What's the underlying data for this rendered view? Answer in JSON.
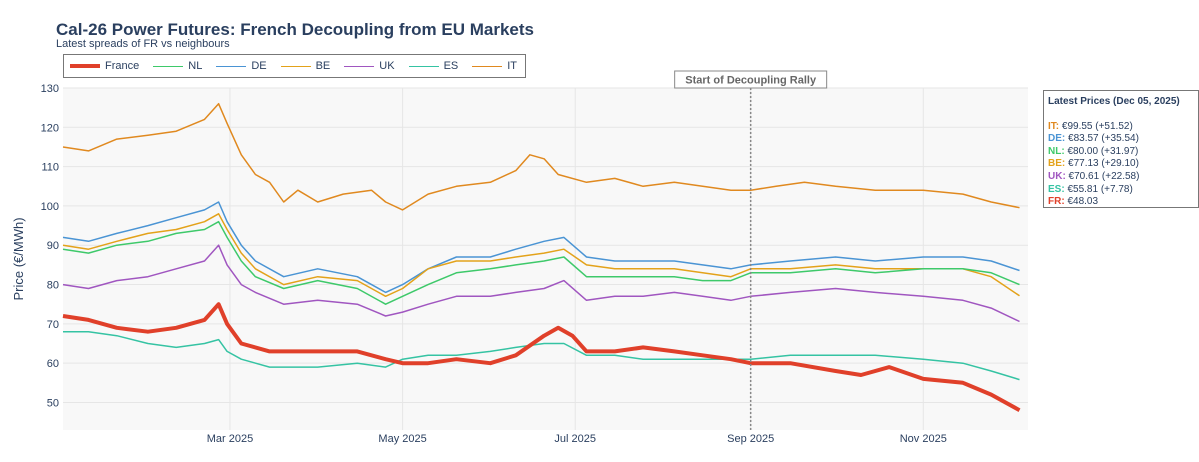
{
  "title": "Cal-26 Power Futures: French Decoupling from EU Markets",
  "subtitle": "Latest spreads of FR vs neighbours",
  "legend": [
    {
      "name": "France",
      "color": "#e0402a",
      "width": 4
    },
    {
      "name": "NL",
      "color": "#3ec96a",
      "width": 1.5
    },
    {
      "name": "DE",
      "color": "#4a94d4",
      "width": 1.5
    },
    {
      "name": "BE",
      "color": "#e3a21a",
      "width": 1.5
    },
    {
      "name": "UK",
      "color": "#a056c0",
      "width": 1.5
    },
    {
      "name": "ES",
      "color": "#35c3a3",
      "width": 1.5
    },
    {
      "name": "IT",
      "color": "#e0891f",
      "width": 1.5
    }
  ],
  "annotation": {
    "text": "Start of Decoupling Rally",
    "date": "2025-09-01"
  },
  "latest_prices": {
    "title": "Latest Prices (Dec 05, 2025)",
    "items": [
      {
        "label": "IT:",
        "text": "€99.55 (+51.52)",
        "color": "#e0891f"
      },
      {
        "label": "DE:",
        "text": "€83.57 (+35.54)",
        "color": "#4a94d4"
      },
      {
        "label": "NL:",
        "text": "€80.00 (+31.97)",
        "color": "#3ec96a"
      },
      {
        "label": "BE:",
        "text": "€77.13 (+29.10)",
        "color": "#e3a21a"
      },
      {
        "label": "UK:",
        "text": "€70.61 (+22.58)",
        "color": "#a056c0"
      },
      {
        "label": "ES:",
        "text": "€55.81 (+7.78)",
        "color": "#35c3a3"
      },
      {
        "label": "FR:",
        "text": "€48.03",
        "color": "#e0402a"
      }
    ]
  },
  "chart_data": {
    "type": "line",
    "ylabel": "Price (€/MWh)",
    "xlabel": "",
    "ylim": [
      43,
      130
    ],
    "xlim": [
      "2025-01-01",
      "2025-12-08"
    ],
    "yticks": [
      50,
      60,
      70,
      80,
      90,
      100,
      110,
      120,
      130
    ],
    "xticks": [
      {
        "date": "2025-03-01",
        "label": "Mar 2025"
      },
      {
        "date": "2025-05-01",
        "label": "May 2025"
      },
      {
        "date": "2025-07-01",
        "label": "Jul 2025"
      },
      {
        "date": "2025-09-01",
        "label": "Sep 2025"
      },
      {
        "date": "2025-11-01",
        "label": "Nov 2025"
      }
    ],
    "grid": true,
    "series": [
      {
        "name": "IT",
        "color": "#e0891f",
        "width": 1.5,
        "points": [
          [
            "2025-01-01",
            115
          ],
          [
            "2025-01-10",
            114
          ],
          [
            "2025-01-20",
            117
          ],
          [
            "2025-01-31",
            118
          ],
          [
            "2025-02-10",
            119
          ],
          [
            "2025-02-20",
            122
          ],
          [
            "2025-02-25",
            126
          ],
          [
            "2025-02-28",
            121
          ],
          [
            "2025-03-05",
            113
          ],
          [
            "2025-03-10",
            108
          ],
          [
            "2025-03-15",
            106
          ],
          [
            "2025-03-20",
            101
          ],
          [
            "2025-03-25",
            104
          ],
          [
            "2025-04-01",
            101
          ],
          [
            "2025-04-10",
            103
          ],
          [
            "2025-04-20",
            104
          ],
          [
            "2025-04-25",
            101
          ],
          [
            "2025-05-01",
            99
          ],
          [
            "2025-05-10",
            103
          ],
          [
            "2025-05-20",
            105
          ],
          [
            "2025-06-01",
            106
          ],
          [
            "2025-06-10",
            109
          ],
          [
            "2025-06-15",
            113
          ],
          [
            "2025-06-20",
            112
          ],
          [
            "2025-06-25",
            108
          ],
          [
            "2025-07-05",
            106
          ],
          [
            "2025-07-15",
            107
          ],
          [
            "2025-07-25",
            105
          ],
          [
            "2025-08-05",
            106
          ],
          [
            "2025-08-15",
            105
          ],
          [
            "2025-08-25",
            104
          ],
          [
            "2025-09-01",
            104
          ],
          [
            "2025-09-10",
            105
          ],
          [
            "2025-09-20",
            106
          ],
          [
            "2025-10-01",
            105
          ],
          [
            "2025-10-15",
            104
          ],
          [
            "2025-11-01",
            104
          ],
          [
            "2025-11-15",
            103
          ],
          [
            "2025-11-25",
            101
          ],
          [
            "2025-12-05",
            99.55
          ]
        ]
      },
      {
        "name": "DE",
        "color": "#4a94d4",
        "width": 1.5,
        "points": [
          [
            "2025-01-01",
            92
          ],
          [
            "2025-01-10",
            91
          ],
          [
            "2025-01-20",
            93
          ],
          [
            "2025-01-31",
            95
          ],
          [
            "2025-02-10",
            97
          ],
          [
            "2025-02-20",
            99
          ],
          [
            "2025-02-25",
            101
          ],
          [
            "2025-02-28",
            96
          ],
          [
            "2025-03-05",
            90
          ],
          [
            "2025-03-10",
            86
          ],
          [
            "2025-03-20",
            82
          ],
          [
            "2025-04-01",
            84
          ],
          [
            "2025-04-15",
            82
          ],
          [
            "2025-04-25",
            78
          ],
          [
            "2025-05-01",
            80
          ],
          [
            "2025-05-10",
            84
          ],
          [
            "2025-05-20",
            87
          ],
          [
            "2025-06-01",
            87
          ],
          [
            "2025-06-10",
            89
          ],
          [
            "2025-06-20",
            91
          ],
          [
            "2025-06-27",
            92
          ],
          [
            "2025-07-05",
            87
          ],
          [
            "2025-07-15",
            86
          ],
          [
            "2025-07-25",
            86
          ],
          [
            "2025-08-05",
            86
          ],
          [
            "2025-08-15",
            85
          ],
          [
            "2025-08-25",
            84
          ],
          [
            "2025-09-01",
            85
          ],
          [
            "2025-09-15",
            86
          ],
          [
            "2025-10-01",
            87
          ],
          [
            "2025-10-15",
            86
          ],
          [
            "2025-11-01",
            87
          ],
          [
            "2025-11-15",
            87
          ],
          [
            "2025-11-25",
            86
          ],
          [
            "2025-12-05",
            83.57
          ]
        ]
      },
      {
        "name": "BE",
        "color": "#e3a21a",
        "width": 1.5,
        "points": [
          [
            "2025-01-01",
            90
          ],
          [
            "2025-01-10",
            89
          ],
          [
            "2025-01-20",
            91
          ],
          [
            "2025-01-31",
            93
          ],
          [
            "2025-02-10",
            94
          ],
          [
            "2025-02-20",
            96
          ],
          [
            "2025-02-25",
            98
          ],
          [
            "2025-02-28",
            94
          ],
          [
            "2025-03-05",
            88
          ],
          [
            "2025-03-10",
            84
          ],
          [
            "2025-03-20",
            80
          ],
          [
            "2025-04-01",
            82
          ],
          [
            "2025-04-15",
            81
          ],
          [
            "2025-04-25",
            77
          ],
          [
            "2025-05-01",
            79
          ],
          [
            "2025-05-10",
            84
          ],
          [
            "2025-05-20",
            86
          ],
          [
            "2025-06-01",
            86
          ],
          [
            "2025-06-10",
            87
          ],
          [
            "2025-06-20",
            88
          ],
          [
            "2025-06-27",
            89
          ],
          [
            "2025-07-05",
            85
          ],
          [
            "2025-07-15",
            84
          ],
          [
            "2025-07-25",
            84
          ],
          [
            "2025-08-05",
            84
          ],
          [
            "2025-08-15",
            83
          ],
          [
            "2025-08-25",
            82
          ],
          [
            "2025-09-01",
            84
          ],
          [
            "2025-09-15",
            84
          ],
          [
            "2025-10-01",
            85
          ],
          [
            "2025-10-15",
            84
          ],
          [
            "2025-11-01",
            84
          ],
          [
            "2025-11-15",
            84
          ],
          [
            "2025-11-25",
            82
          ],
          [
            "2025-12-05",
            77.13
          ]
        ]
      },
      {
        "name": "NL",
        "color": "#3ec96a",
        "width": 1.5,
        "points": [
          [
            "2025-01-01",
            89
          ],
          [
            "2025-01-10",
            88
          ],
          [
            "2025-01-20",
            90
          ],
          [
            "2025-01-31",
            91
          ],
          [
            "2025-02-10",
            93
          ],
          [
            "2025-02-20",
            94
          ],
          [
            "2025-02-25",
            96
          ],
          [
            "2025-02-28",
            92
          ],
          [
            "2025-03-05",
            86
          ],
          [
            "2025-03-10",
            82
          ],
          [
            "2025-03-20",
            79
          ],
          [
            "2025-04-01",
            81
          ],
          [
            "2025-04-15",
            79
          ],
          [
            "2025-04-25",
            75
          ],
          [
            "2025-05-01",
            77
          ],
          [
            "2025-05-10",
            80
          ],
          [
            "2025-05-20",
            83
          ],
          [
            "2025-06-01",
            84
          ],
          [
            "2025-06-10",
            85
          ],
          [
            "2025-06-20",
            86
          ],
          [
            "2025-06-27",
            87
          ],
          [
            "2025-07-05",
            82
          ],
          [
            "2025-07-15",
            82
          ],
          [
            "2025-07-25",
            82
          ],
          [
            "2025-08-05",
            82
          ],
          [
            "2025-08-15",
            81
          ],
          [
            "2025-08-25",
            81
          ],
          [
            "2025-09-01",
            83
          ],
          [
            "2025-09-15",
            83
          ],
          [
            "2025-10-01",
            84
          ],
          [
            "2025-10-15",
            83
          ],
          [
            "2025-11-01",
            84
          ],
          [
            "2025-11-15",
            84
          ],
          [
            "2025-11-25",
            83
          ],
          [
            "2025-12-05",
            80.0
          ]
        ]
      },
      {
        "name": "UK",
        "color": "#a056c0",
        "width": 1.5,
        "points": [
          [
            "2025-01-01",
            80
          ],
          [
            "2025-01-10",
            79
          ],
          [
            "2025-01-20",
            81
          ],
          [
            "2025-01-31",
            82
          ],
          [
            "2025-02-10",
            84
          ],
          [
            "2025-02-20",
            86
          ],
          [
            "2025-02-25",
            90
          ],
          [
            "2025-02-28",
            85
          ],
          [
            "2025-03-05",
            80
          ],
          [
            "2025-03-10",
            78
          ],
          [
            "2025-03-20",
            75
          ],
          [
            "2025-04-01",
            76
          ],
          [
            "2025-04-15",
            75
          ],
          [
            "2025-04-25",
            72
          ],
          [
            "2025-05-01",
            73
          ],
          [
            "2025-05-10",
            75
          ],
          [
            "2025-05-20",
            77
          ],
          [
            "2025-06-01",
            77
          ],
          [
            "2025-06-10",
            78
          ],
          [
            "2025-06-20",
            79
          ],
          [
            "2025-06-27",
            81
          ],
          [
            "2025-07-05",
            76
          ],
          [
            "2025-07-15",
            77
          ],
          [
            "2025-07-25",
            77
          ],
          [
            "2025-08-05",
            78
          ],
          [
            "2025-08-15",
            77
          ],
          [
            "2025-08-25",
            76
          ],
          [
            "2025-09-01",
            77
          ],
          [
            "2025-09-15",
            78
          ],
          [
            "2025-10-01",
            79
          ],
          [
            "2025-10-15",
            78
          ],
          [
            "2025-11-01",
            77
          ],
          [
            "2025-11-15",
            76
          ],
          [
            "2025-11-25",
            74
          ],
          [
            "2025-12-05",
            70.61
          ]
        ]
      },
      {
        "name": "ES",
        "color": "#35c3a3",
        "width": 1.5,
        "points": [
          [
            "2025-01-01",
            68
          ],
          [
            "2025-01-10",
            68
          ],
          [
            "2025-01-20",
            67
          ],
          [
            "2025-01-31",
            65
          ],
          [
            "2025-02-10",
            64
          ],
          [
            "2025-02-20",
            65
          ],
          [
            "2025-02-25",
            66
          ],
          [
            "2025-02-28",
            63
          ],
          [
            "2025-03-05",
            61
          ],
          [
            "2025-03-15",
            59
          ],
          [
            "2025-04-01",
            59
          ],
          [
            "2025-04-15",
            60
          ],
          [
            "2025-04-25",
            59
          ],
          [
            "2025-05-01",
            61
          ],
          [
            "2025-05-10",
            62
          ],
          [
            "2025-05-20",
            62
          ],
          [
            "2025-06-01",
            63
          ],
          [
            "2025-06-10",
            64
          ],
          [
            "2025-06-20",
            65
          ],
          [
            "2025-06-27",
            65
          ],
          [
            "2025-07-05",
            62
          ],
          [
            "2025-07-15",
            62
          ],
          [
            "2025-07-25",
            61
          ],
          [
            "2025-08-05",
            61
          ],
          [
            "2025-08-15",
            61
          ],
          [
            "2025-08-25",
            61
          ],
          [
            "2025-09-01",
            61
          ],
          [
            "2025-09-15",
            62
          ],
          [
            "2025-10-01",
            62
          ],
          [
            "2025-10-15",
            62
          ],
          [
            "2025-11-01",
            61
          ],
          [
            "2025-11-15",
            60
          ],
          [
            "2025-11-25",
            58
          ],
          [
            "2025-12-05",
            55.81
          ]
        ]
      },
      {
        "name": "France",
        "color": "#e0402a",
        "width": 4,
        "points": [
          [
            "2025-01-01",
            72
          ],
          [
            "2025-01-10",
            71
          ],
          [
            "2025-01-20",
            69
          ],
          [
            "2025-01-31",
            68
          ],
          [
            "2025-02-10",
            69
          ],
          [
            "2025-02-20",
            71
          ],
          [
            "2025-02-25",
            75
          ],
          [
            "2025-02-28",
            70
          ],
          [
            "2025-03-05",
            65
          ],
          [
            "2025-03-15",
            63
          ],
          [
            "2025-04-01",
            63
          ],
          [
            "2025-04-15",
            63
          ],
          [
            "2025-04-25",
            61
          ],
          [
            "2025-05-01",
            60
          ],
          [
            "2025-05-10",
            60
          ],
          [
            "2025-05-20",
            61
          ],
          [
            "2025-06-01",
            60
          ],
          [
            "2025-06-10",
            62
          ],
          [
            "2025-06-20",
            67
          ],
          [
            "2025-06-25",
            69
          ],
          [
            "2025-06-30",
            67
          ],
          [
            "2025-07-05",
            63
          ],
          [
            "2025-07-15",
            63
          ],
          [
            "2025-07-25",
            64
          ],
          [
            "2025-08-05",
            63
          ],
          [
            "2025-08-15",
            62
          ],
          [
            "2025-08-25",
            61
          ],
          [
            "2025-09-01",
            60
          ],
          [
            "2025-09-15",
            60
          ],
          [
            "2025-10-01",
            58
          ],
          [
            "2025-10-10",
            57
          ],
          [
            "2025-10-20",
            59
          ],
          [
            "2025-11-01",
            56
          ],
          [
            "2025-11-15",
            55
          ],
          [
            "2025-11-25",
            52
          ],
          [
            "2025-12-05",
            48.03
          ]
        ]
      }
    ]
  }
}
